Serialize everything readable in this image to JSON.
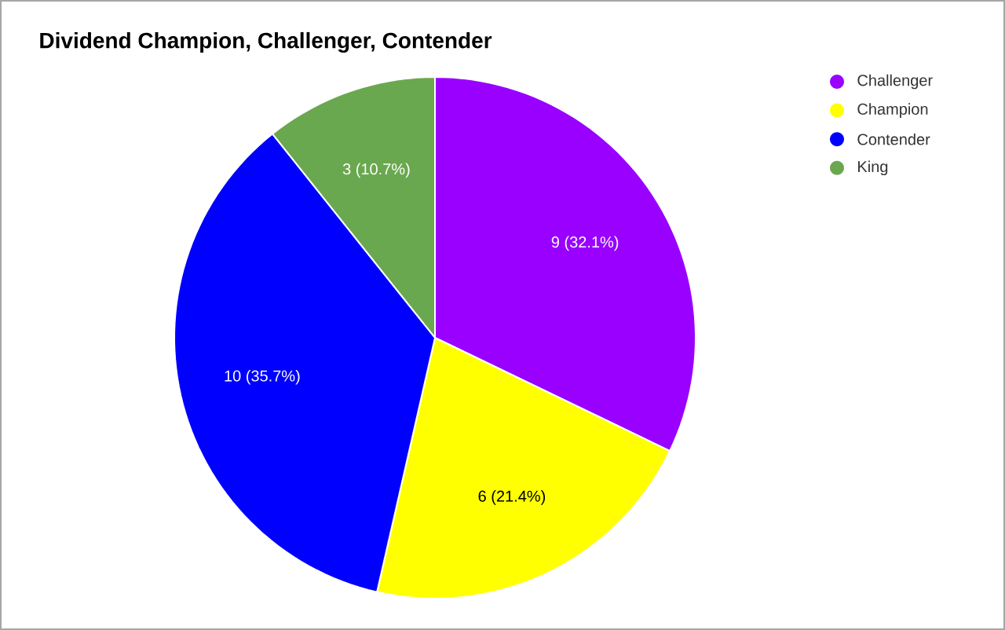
{
  "chart_data": {
    "type": "pie",
    "title": "Dividend Champion, Challenger, Contender",
    "categories": [
      "Challenger",
      "Champion",
      "Contender",
      "King"
    ],
    "values": [
      9,
      6,
      10,
      3
    ],
    "colors": [
      "#9900ff",
      "#ffff00",
      "#0000ff",
      "#6aa84f"
    ],
    "value_labels": [
      "9 (32.1%)",
      "6 (21.4%)",
      "10 (35.7%)",
      "3 (10.7%)"
    ],
    "legend": "top right"
  }
}
